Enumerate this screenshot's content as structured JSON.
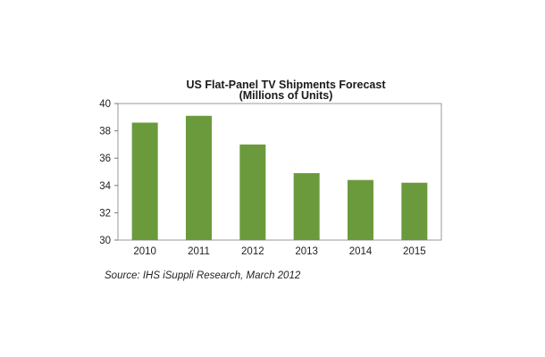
{
  "chart_data": {
    "type": "bar",
    "title": "US Flat-Panel TV Shipments Forecast",
    "subtitle": "(Millions of Units)",
    "categories": [
      "2010",
      "2011",
      "2012",
      "2013",
      "2014",
      "2015"
    ],
    "values": [
      38.6,
      39.1,
      37.0,
      34.9,
      34.4,
      34.2
    ],
    "ylim": [
      30,
      40
    ],
    "yticks": [
      30,
      32,
      34,
      36,
      38,
      40
    ],
    "xlabel": "",
    "ylabel": "",
    "grid": false,
    "legend": "none",
    "bar_color": "#6b9a3c"
  },
  "source": "Source: IHS iSuppli Research, March 2012"
}
